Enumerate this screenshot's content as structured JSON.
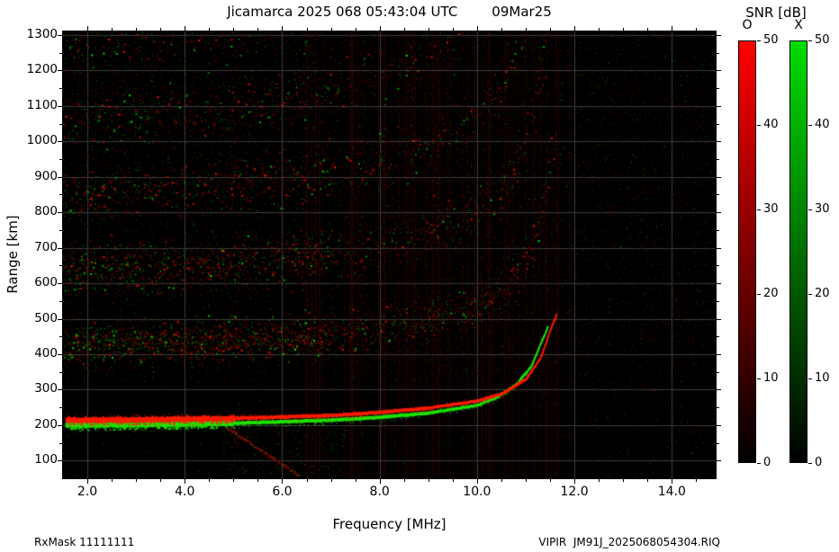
{
  "header": {
    "title": "Jicamarca 2025 068 05:43:04 UTC",
    "date": "09Mar25"
  },
  "footer": {
    "left": "RxMask 11111111",
    "right": "VIPIR  JM91J_2025068054304.RIQ"
  },
  "colorbar": {
    "title": "SNR [dB]",
    "range": [
      0,
      50
    ],
    "bars": [
      {
        "label": "O",
        "color_min": "#000000",
        "color_max": "#ff0000",
        "ticks": [
          0,
          10,
          20,
          30,
          40,
          50
        ]
      },
      {
        "label": "X",
        "color_min": "#000000",
        "color_max": "#00dd00",
        "ticks": [
          0,
          10,
          20,
          30,
          40,
          50
        ]
      }
    ]
  },
  "chart_data": {
    "type": "heatmap",
    "title": "Jicamarca 2025 068 05:43:04 UTC 09Mar25",
    "xlabel": "Frequency [MHz]",
    "ylabel": "Range [km]",
    "xlim": [
      1.5,
      14.9
    ],
    "ylim": [
      50,
      1310
    ],
    "xticks": [
      2.0,
      4.0,
      6.0,
      8.0,
      10.0,
      12.0,
      14.0
    ],
    "xtick_labels": [
      "2.0",
      "4.0",
      "6.0",
      "8.0",
      "10.0",
      "12.0",
      "14.0"
    ],
    "yticks": [
      100,
      200,
      300,
      400,
      500,
      600,
      700,
      800,
      900,
      1000,
      1100,
      1200,
      1300
    ],
    "ytick_labels": [
      "100",
      "200",
      "300",
      "400",
      "500",
      "600",
      "700",
      "800",
      "900",
      "1000",
      "1100",
      "1200",
      "1300"
    ],
    "grid": true,
    "grid_color": "#3c3c3c",
    "background": "#000000",
    "snr_range": [
      0,
      50
    ],
    "traces": [
      {
        "name": "F-layer O-mode trace",
        "mode": "O",
        "color": "#ff1c00",
        "critical_mhz": 11.65,
        "points": [
          [
            1.6,
            214
          ],
          [
            3.0,
            215
          ],
          [
            5.0,
            219
          ],
          [
            7.0,
            227
          ],
          [
            8.0,
            236
          ],
          [
            9.0,
            248
          ],
          [
            10.0,
            268
          ],
          [
            10.5,
            288
          ],
          [
            11.0,
            330
          ],
          [
            11.3,
            390
          ],
          [
            11.5,
            470
          ],
          [
            11.62,
            510
          ]
        ]
      },
      {
        "name": "F-layer X-mode trace",
        "mode": "X",
        "color": "#1ae800",
        "critical_mhz": 11.45,
        "points": [
          [
            1.6,
            200
          ],
          [
            3.0,
            201
          ],
          [
            5.0,
            205
          ],
          [
            7.0,
            214
          ],
          [
            8.0,
            222
          ],
          [
            9.0,
            234
          ],
          [
            10.0,
            256
          ],
          [
            10.4,
            278
          ],
          [
            10.8,
            315
          ],
          [
            11.1,
            365
          ],
          [
            11.3,
            430
          ],
          [
            11.45,
            478
          ]
        ]
      }
    ],
    "multihop_echoes": [
      {
        "hop": 2,
        "spread_km": 45,
        "density": 1.0
      },
      {
        "hop": 3,
        "spread_km": 55,
        "density": 0.8
      },
      {
        "hop": 4,
        "spread_km": 58,
        "density": 0.55
      },
      {
        "hop": 5,
        "spread_km": 62,
        "density": 0.42
      },
      {
        "hop": 6,
        "spread_km": 68,
        "density": 0.32
      }
    ],
    "sporadic_low_echo": {
      "f_range": [
        4.7,
        7.3
      ],
      "h_range": [
        55,
        195
      ],
      "density": 0.35
    },
    "descending_streak": {
      "from": [
        4.85,
        195
      ],
      "to": [
        6.35,
        58
      ]
    },
    "rfi_stripes": {
      "count": 90,
      "f_range": [
        6.3,
        11.9
      ]
    },
    "background_noise": {
      "count": 16000,
      "red_fraction": 0.72
    }
  }
}
